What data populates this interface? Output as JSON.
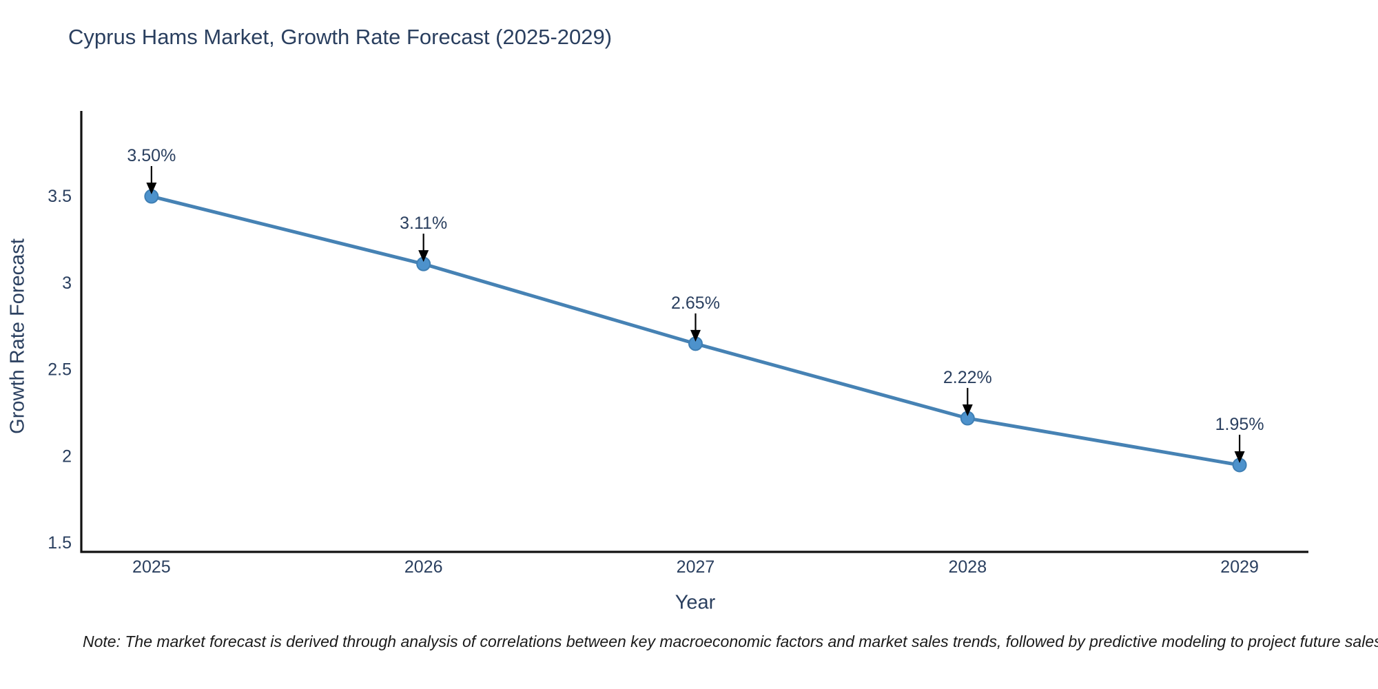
{
  "title": "Cyprus Hams Market, Growth Rate Forecast (2025-2029)",
  "note": "Note: The market forecast is derived through analysis of correlations between key macroeconomic factors and market sales trends, followed by predictive modeling to project future sales",
  "colors": {
    "title_text": "#2a3f5f",
    "tick_text": "#2a3f5f",
    "annotation_text": "#2a3f5f",
    "axis_line": "#111111",
    "series_line": "#4682b4",
    "marker_fill": "#4d92cc",
    "marker_edge": "#3f7fb4",
    "arrow": "#000000",
    "note_text": "#1a1a1a",
    "background": "#ffffff"
  },
  "chart_data": {
    "type": "line",
    "title": "Cyprus Hams Market, Growth Rate Forecast (2025-2029)",
    "xlabel": "Year",
    "ylabel": "Growth Rate Forecast",
    "x": [
      2025,
      2026,
      2027,
      2028,
      2029
    ],
    "values": [
      3.5,
      3.11,
      2.65,
      2.22,
      1.95
    ],
    "point_labels": [
      "3.50%",
      "3.11%",
      "2.65%",
      "2.22%",
      "1.95%"
    ],
    "x_ticks": [
      "2025",
      "2026",
      "2027",
      "2028",
      "2029"
    ],
    "x_tick_values": [
      2025,
      2026,
      2027,
      2028,
      2029
    ],
    "y_ticks": [
      "1.5",
      "2",
      "2.5",
      "3",
      "3.5"
    ],
    "y_tick_values": [
      1.5,
      2.0,
      2.5,
      3.0,
      3.5
    ],
    "xlim": [
      2024.742,
      2029.253
    ],
    "ylim": [
      1.449,
      3.993
    ],
    "grid": false,
    "legend": false,
    "annotation_style": "value labels above points with downward arrows"
  }
}
